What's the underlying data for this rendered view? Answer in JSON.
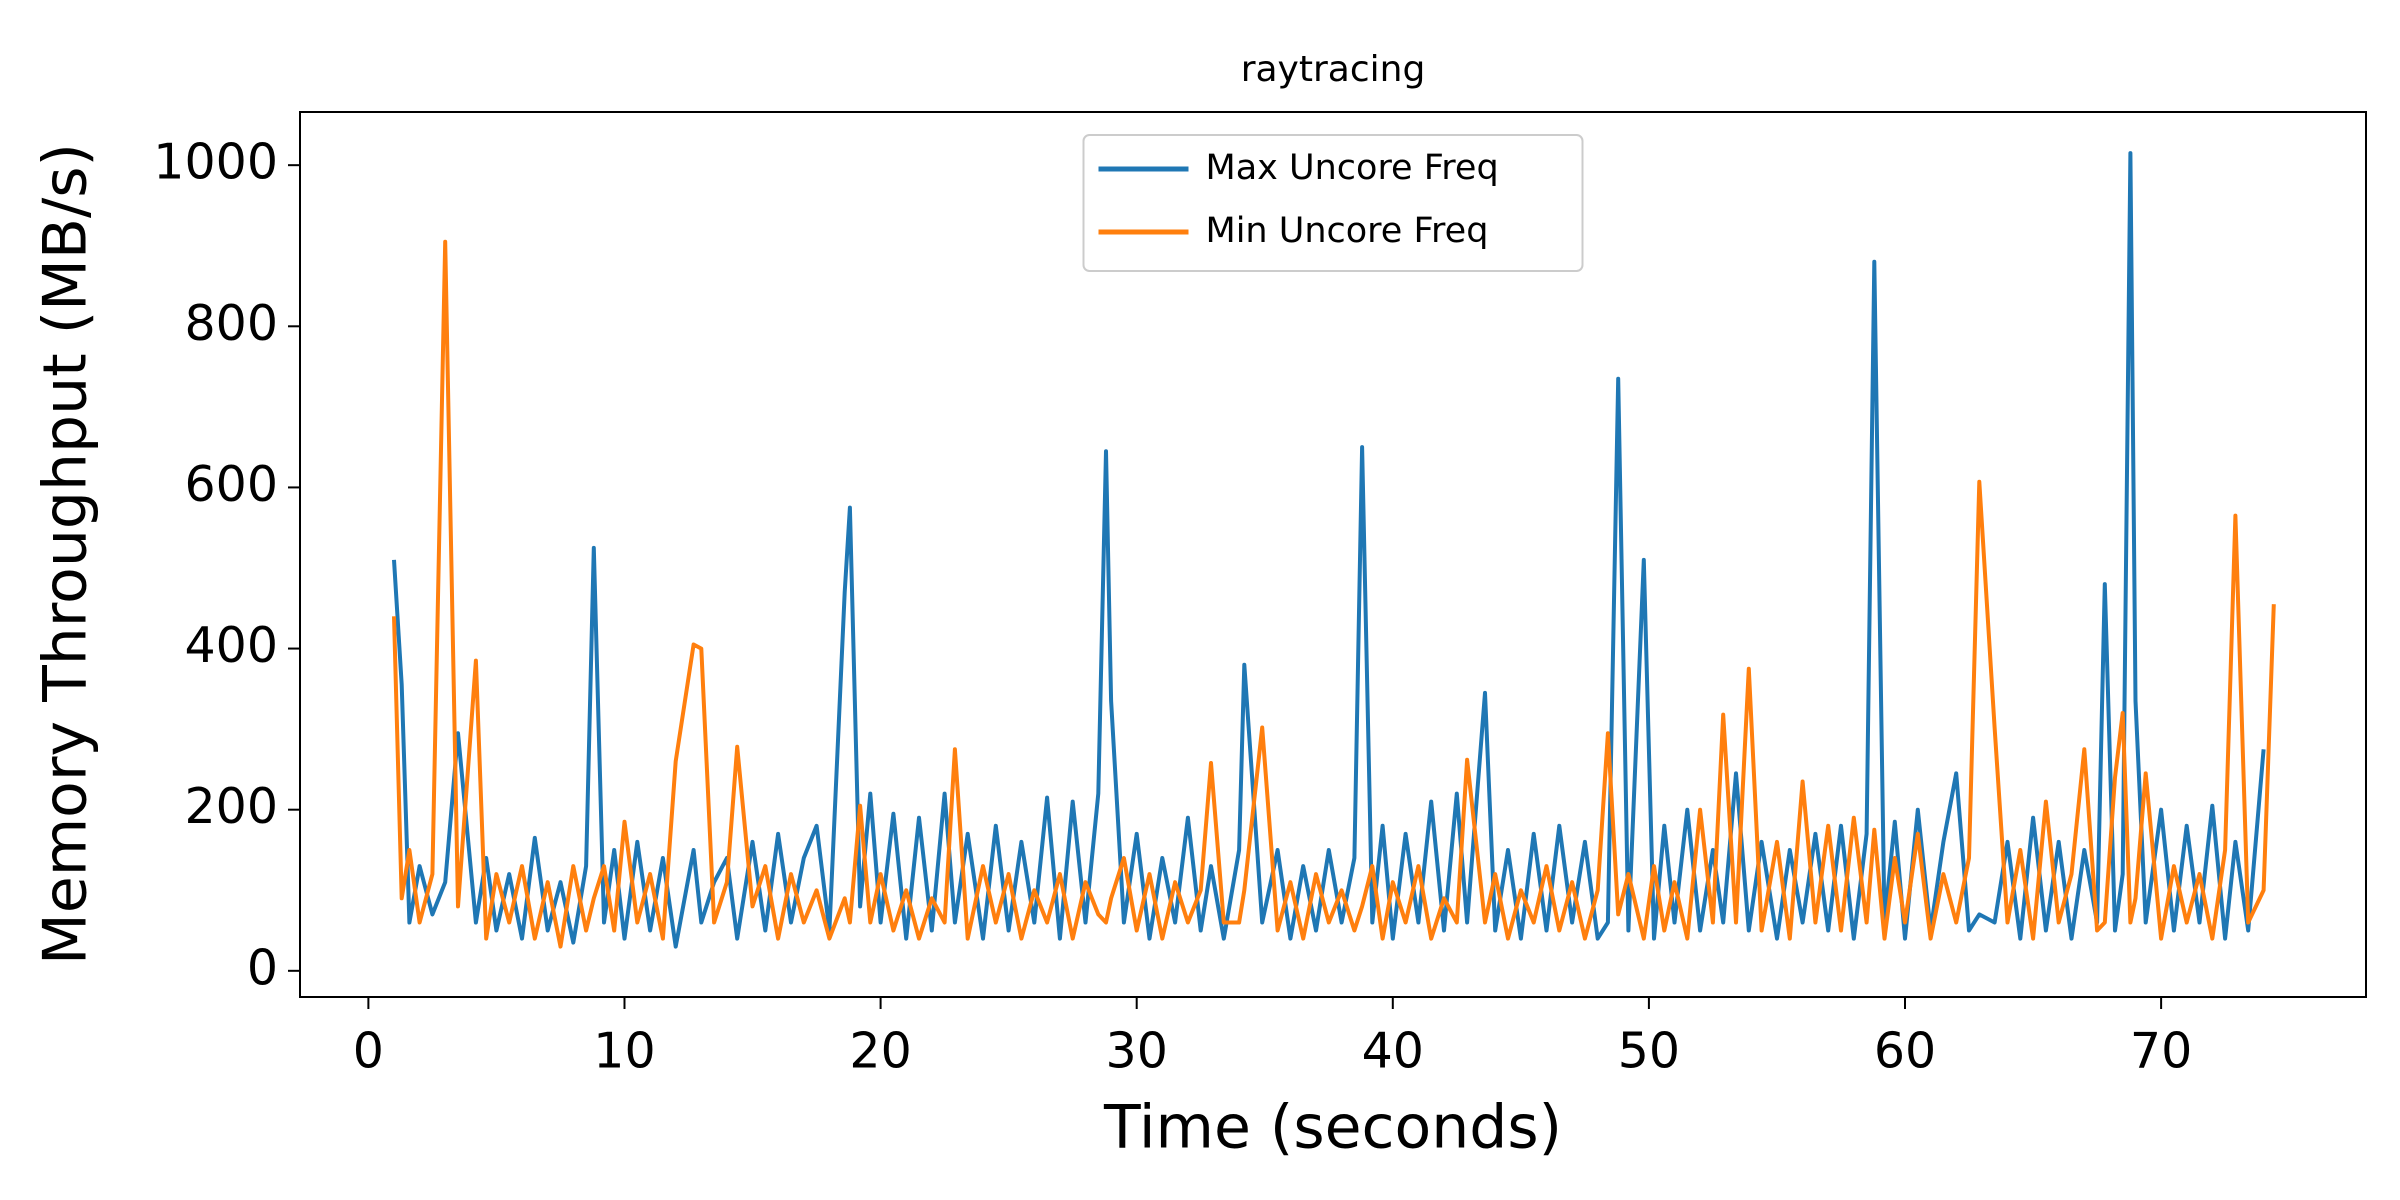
{
  "chart_data": {
    "type": "line",
    "title": "raytracing",
    "x_label": "Time (seconds)",
    "y_label": "Memory Throughput (MB/s)",
    "x": [
      1,
      1.3,
      1.6,
      2,
      2.5,
      3,
      3.5,
      4.2,
      4.6,
      5,
      5.5,
      6,
      6.5,
      7,
      7.5,
      8,
      8.5,
      8.8,
      9.2,
      9.6,
      10,
      10.5,
      11,
      11.5,
      12,
      12.7,
      13,
      13.5,
      14,
      14.4,
      15,
      15.5,
      16,
      16.5,
      17,
      17.5,
      18,
      18.6,
      18.8,
      19.2,
      19.6,
      20,
      20.5,
      21,
      21.5,
      22,
      22.5,
      22.9,
      23.4,
      24,
      24.5,
      25,
      25.5,
      26,
      26.5,
      27,
      27.5,
      28,
      28.5,
      28.8,
      29,
      29.5,
      30,
      30.5,
      31,
      31.5,
      32,
      32.5,
      32.9,
      33.4,
      34,
      34.2,
      34.9,
      35.5,
      36,
      36.5,
      37,
      37.5,
      38,
      38.5,
      38.8,
      39.2,
      39.6,
      40,
      40.5,
      41,
      41.5,
      42,
      42.5,
      42.9,
      43.6,
      44,
      44.5,
      45,
      45.5,
      46,
      46.5,
      47,
      47.5,
      48,
      48.4,
      48.8,
      49.2,
      49.8,
      50.2,
      50.6,
      51,
      51.5,
      52,
      52.5,
      52.9,
      53.4,
      53.9,
      54.4,
      55,
      55.5,
      56,
      56.5,
      57,
      57.5,
      58,
      58.5,
      58.8,
      59.2,
      59.6,
      60,
      60.5,
      61,
      61.5,
      62,
      62.5,
      62.9,
      63.5,
      64,
      64.5,
      65,
      65.5,
      66,
      66.5,
      67,
      67.5,
      67.8,
      68.2,
      68.5,
      68.8,
      69,
      69.4,
      70,
      70.5,
      71,
      71.5,
      72,
      72.5,
      72.9,
      73.4,
      74,
      74.4
    ],
    "series": [
      {
        "name": "Max Uncore Freq",
        "color": "#1f77b4",
        "values": [
          510,
          355,
          60,
          130,
          70,
          110,
          295,
          60,
          140,
          50,
          120,
          40,
          165,
          50,
          110,
          35,
          130,
          525,
          60,
          150,
          40,
          160,
          50,
          140,
          30,
          150,
          60,
          110,
          140,
          40,
          160,
          50,
          170,
          60,
          140,
          180,
          50,
          470,
          575,
          80,
          220,
          60,
          195,
          40,
          190,
          50,
          220,
          60,
          170,
          40,
          180,
          50,
          160,
          60,
          215,
          40,
          210,
          60,
          220,
          645,
          335,
          60,
          170,
          40,
          140,
          60,
          190,
          50,
          130,
          40,
          150,
          380,
          60,
          150,
          40,
          130,
          50,
          150,
          60,
          140,
          650,
          60,
          180,
          40,
          170,
          60,
          210,
          50,
          220,
          60,
          345,
          50,
          150,
          40,
          170,
          50,
          180,
          60,
          160,
          40,
          60,
          735,
          50,
          510,
          40,
          180,
          60,
          200,
          50,
          150,
          60,
          245,
          50,
          160,
          40,
          150,
          60,
          170,
          50,
          180,
          40,
          170,
          880,
          60,
          185,
          40,
          200,
          50,
          160,
          245,
          50,
          70,
          60,
          160,
          40,
          190,
          50,
          160,
          40,
          150,
          60,
          480,
          50,
          120,
          1015,
          335,
          60,
          200,
          50,
          180,
          60,
          205,
          40,
          160,
          50,
          275,
          null
        ]
      },
      {
        "name": "Min Uncore Freq",
        "color": "#ff7f0e",
        "values": [
          440,
          90,
          150,
          60,
          120,
          905,
          80,
          385,
          40,
          120,
          60,
          130,
          40,
          110,
          30,
          130,
          50,
          90,
          130,
          50,
          185,
          60,
          120,
          40,
          260,
          405,
          400,
          60,
          110,
          278,
          80,
          130,
          40,
          120,
          60,
          100,
          40,
          90,
          60,
          205,
          60,
          120,
          50,
          100,
          40,
          90,
          60,
          275,
          40,
          130,
          60,
          120,
          40,
          100,
          60,
          120,
          40,
          110,
          70,
          60,
          90,
          140,
          50,
          120,
          40,
          110,
          60,
          100,
          258,
          60,
          60,
          100,
          302,
          50,
          110,
          40,
          120,
          60,
          100,
          50,
          80,
          130,
          40,
          110,
          60,
          130,
          40,
          90,
          60,
          262,
          60,
          120,
          40,
          100,
          60,
          130,
          50,
          110,
          40,
          100,
          295,
          70,
          120,
          40,
          130,
          50,
          110,
          40,
          200,
          60,
          318,
          60,
          375,
          50,
          160,
          40,
          235,
          60,
          180,
          50,
          190,
          60,
          175,
          40,
          140,
          60,
          170,
          40,
          120,
          60,
          140,
          607,
          302,
          60,
          150,
          40,
          210,
          60,
          120,
          275,
          50,
          60,
          240,
          320,
          60,
          90,
          245,
          40,
          130,
          60,
          120,
          40,
          150,
          565,
          60,
          100,
          455
        ]
      }
    ],
    "xlim": [
      -2.67,
      78.0
    ],
    "ylim": [
      -32.5,
      1066
    ],
    "xticks": [
      0,
      10,
      20,
      30,
      40,
      50,
      60,
      70
    ],
    "yticks": [
      0,
      200,
      400,
      600,
      800,
      1000
    ],
    "legend": "upper center",
    "grid": false
  }
}
